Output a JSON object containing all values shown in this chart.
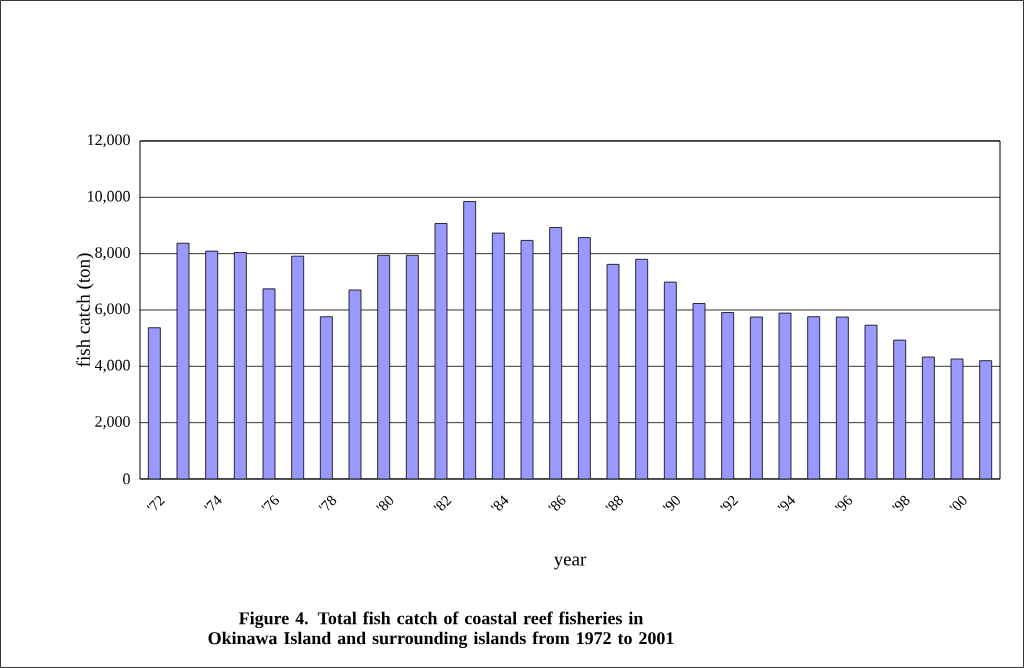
{
  "chart_data": {
    "type": "bar",
    "title": "Figure 4. Total fish catch of coastal reef fisheries in Okinawa Island and surrounding islands from 1972 to 2001",
    "xlabel": "year",
    "ylabel": "fish catch (ton)",
    "categories": [
      "'72",
      null,
      "'74",
      null,
      "'76",
      null,
      "'78",
      null,
      "'80",
      null,
      "'82",
      null,
      "'84",
      null,
      "'86",
      null,
      "'88",
      null,
      "'90",
      null,
      "'92",
      null,
      "'94",
      null,
      "'96",
      null,
      "'98",
      null,
      "'00",
      null
    ],
    "values": [
      5370,
      8370,
      8090,
      8040,
      6750,
      7910,
      5760,
      6710,
      7940,
      7940,
      9070,
      9850,
      8730,
      8470,
      8930,
      8570,
      7620,
      7800,
      6990,
      6230,
      5910,
      5750,
      5890,
      5760,
      5750,
      5460,
      4930,
      4330,
      4260,
      4200
    ],
    "color": "#9999ff",
    "ylim": [
      0,
      12000
    ],
    "yticks": [
      0,
      {
        "value": 2000,
        "label": "2,000"
      },
      {
        "value": 4000,
        "label": "4,000"
      },
      {
        "value": 6000,
        "label": "6,000"
      },
      {
        "value": 8000,
        "label": "8,000"
      },
      {
        "value": 10000,
        "label": "10,000"
      },
      {
        "value": 12000,
        "label": "12,000"
      }
    ],
    "grid": "y"
  }
}
